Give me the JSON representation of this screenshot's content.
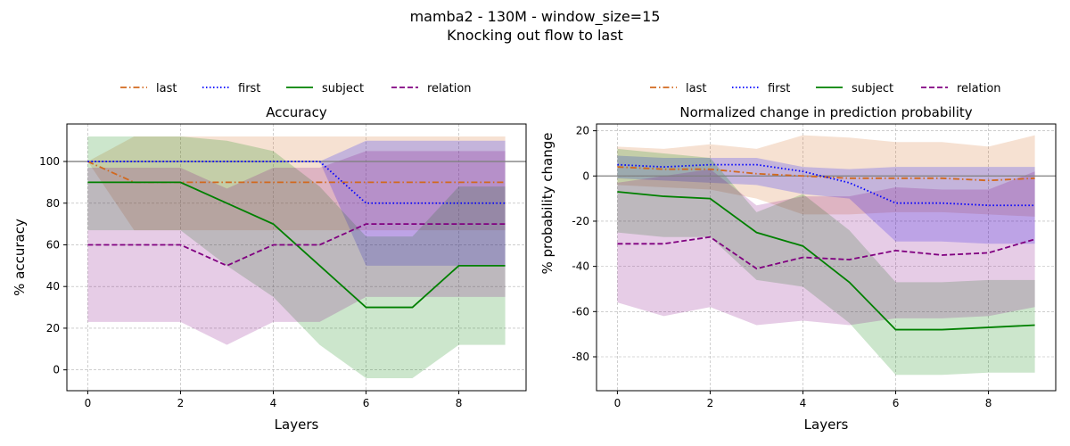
{
  "figure": {
    "title_line1": "mamba2 - 130M - window_size=15",
    "title_line2": "Knocking out flow to last"
  },
  "colors": {
    "last": "#d2691e",
    "first": "#0000ff",
    "subject": "#008000",
    "relation": "#800080"
  },
  "chart_data": [
    {
      "type": "line",
      "title": "Accuracy",
      "xlabel": "Layers",
      "ylabel": "% accuracy",
      "xlim": [
        -0.45,
        9.45
      ],
      "ylim": [
        -10,
        118
      ],
      "xticks": [
        0,
        2,
        4,
        6,
        8
      ],
      "yticks": [
        0,
        20,
        40,
        60,
        80,
        100
      ],
      "reference_line": 100,
      "grid": true,
      "legend_position": "top-center",
      "x": [
        0,
        1,
        2,
        3,
        4,
        5,
        6,
        7,
        8,
        9
      ],
      "series": [
        {
          "name": "last",
          "style": "dashdot",
          "values": [
            100,
            90,
            90,
            90,
            90,
            90,
            90,
            90,
            90,
            90
          ],
          "lower": [
            100,
            67,
            67,
            67,
            67,
            67,
            67,
            67,
            67,
            67
          ],
          "upper": [
            100,
            112,
            112,
            112,
            112,
            112,
            112,
            112,
            112,
            112
          ]
        },
        {
          "name": "first",
          "style": "dotted",
          "values": [
            100,
            100,
            100,
            100,
            100,
            100,
            80,
            80,
            80,
            80
          ],
          "lower": [
            100,
            100,
            100,
            100,
            100,
            100,
            50,
            50,
            50,
            50
          ],
          "upper": [
            100,
            100,
            100,
            100,
            100,
            100,
            110,
            110,
            110,
            110
          ]
        },
        {
          "name": "subject",
          "style": "solid",
          "values": [
            90,
            90,
            90,
            80,
            70,
            50,
            30,
            30,
            50,
            50
          ],
          "lower": [
            67,
            67,
            67,
            50,
            35,
            12,
            -4,
            -4,
            12,
            12
          ],
          "upper": [
            112,
            112,
            112,
            110,
            105,
            88,
            64,
            64,
            88,
            88
          ]
        },
        {
          "name": "relation",
          "style": "dashed",
          "values": [
            60,
            60,
            60,
            50,
            60,
            60,
            70,
            70,
            70,
            70
          ],
          "lower": [
            23,
            23,
            23,
            12,
            23,
            23,
            35,
            35,
            35,
            35
          ],
          "upper": [
            97,
            97,
            97,
            87,
            97,
            97,
            105,
            105,
            105,
            105
          ]
        }
      ]
    },
    {
      "type": "line",
      "title": "Normalized change in prediction probability",
      "xlabel": "Layers",
      "ylabel": "% probability change",
      "xlim": [
        -0.45,
        9.45
      ],
      "ylim": [
        -95,
        23
      ],
      "xticks": [
        0,
        2,
        4,
        6,
        8
      ],
      "yticks": [
        -80,
        -60,
        -40,
        -20,
        0,
        20
      ],
      "reference_line": 0,
      "grid": true,
      "legend_position": "top-center",
      "x": [
        0,
        1,
        2,
        3,
        4,
        5,
        6,
        7,
        8,
        9
      ],
      "series": [
        {
          "name": "last",
          "style": "dashdot",
          "values": [
            4,
            3,
            3,
            1,
            0,
            -1,
            -1,
            -1,
            -2,
            -1
          ],
          "lower": [
            -4,
            -5,
            -6,
            -10,
            -17,
            -17,
            -16,
            -16,
            -17,
            -18
          ],
          "upper": [
            13,
            12,
            14,
            12,
            18,
            17,
            15,
            15,
            13,
            18
          ]
        },
        {
          "name": "first",
          "style": "dotted",
          "values": [
            5,
            4,
            5,
            5,
            2,
            -3,
            -12,
            -12,
            -13,
            -13
          ],
          "lower": [
            -1,
            -2,
            -3,
            -4,
            -8,
            -10,
            -29,
            -29,
            -30,
            -30
          ],
          "upper": [
            9,
            8,
            8,
            8,
            4,
            3,
            4,
            4,
            4,
            4
          ]
        },
        {
          "name": "subject",
          "style": "solid",
          "values": [
            -7,
            -9,
            -10,
            -25,
            -31,
            -47,
            -68,
            -68,
            -67,
            -66
          ],
          "lower": [
            -25,
            -27,
            -27,
            -46,
            -49,
            -65,
            -88,
            -88,
            -87,
            -87
          ],
          "upper": [
            12,
            10,
            8,
            -16,
            -8,
            -24,
            -47,
            -47,
            -46,
            -46
          ]
        },
        {
          "name": "relation",
          "style": "dashed",
          "values": [
            -30,
            -30,
            -27,
            -41,
            -36,
            -37,
            -33,
            -35,
            -34,
            -28
          ],
          "lower": [
            -56,
            -62,
            -58,
            -66,
            -64,
            -66,
            -63,
            -63,
            -62,
            -58
          ],
          "upper": [
            -3,
            0,
            3,
            -13,
            -9,
            -9,
            -5,
            -6,
            -6,
            2
          ]
        }
      ]
    }
  ]
}
